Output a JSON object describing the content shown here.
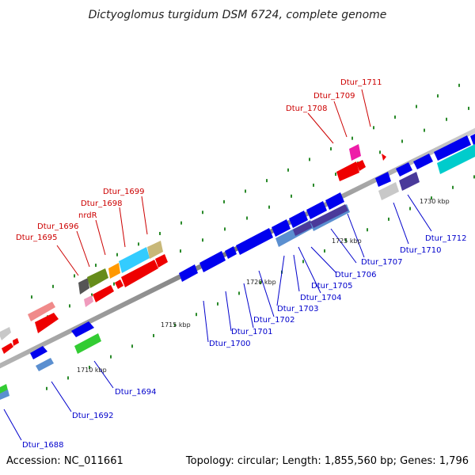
{
  "title": "Dictyoglomus turgidum DSM 6724, complete genome",
  "footer": {
    "accession": "Accession: NC_011661",
    "summary": "Topology: circular; Length: 1,855,560 bp; Genes: 1,796"
  },
  "ticks": [
    "1710 kbp",
    "1715 kbp",
    "1720 kbp",
    "1725 kbp",
    "1730 kbp"
  ],
  "colors": {
    "backbone": "#8c8c8c",
    "forward_label": "#cc0000",
    "reverse_label": "#0000cc",
    "tick": "#2a8a2a"
  },
  "labels_forward": [
    "Dtur_1695",
    "Dtur_1696",
    "nrdR",
    "Dtur_1698",
    "Dtur_1699",
    "Dtur_1708",
    "Dtur_1709",
    "Dtur_1711"
  ],
  "labels_reverse": [
    "Dtur_1688",
    "Dtur_1692",
    "Dtur_1694",
    "Dtur_1700",
    "Dtur_1701",
    "Dtur_1702",
    "Dtur_1703",
    "Dtur_1704",
    "Dtur_1705",
    "Dtur_1706",
    "Dtur_1707",
    "Dtur_1710",
    "Dtur_1712"
  ]
}
